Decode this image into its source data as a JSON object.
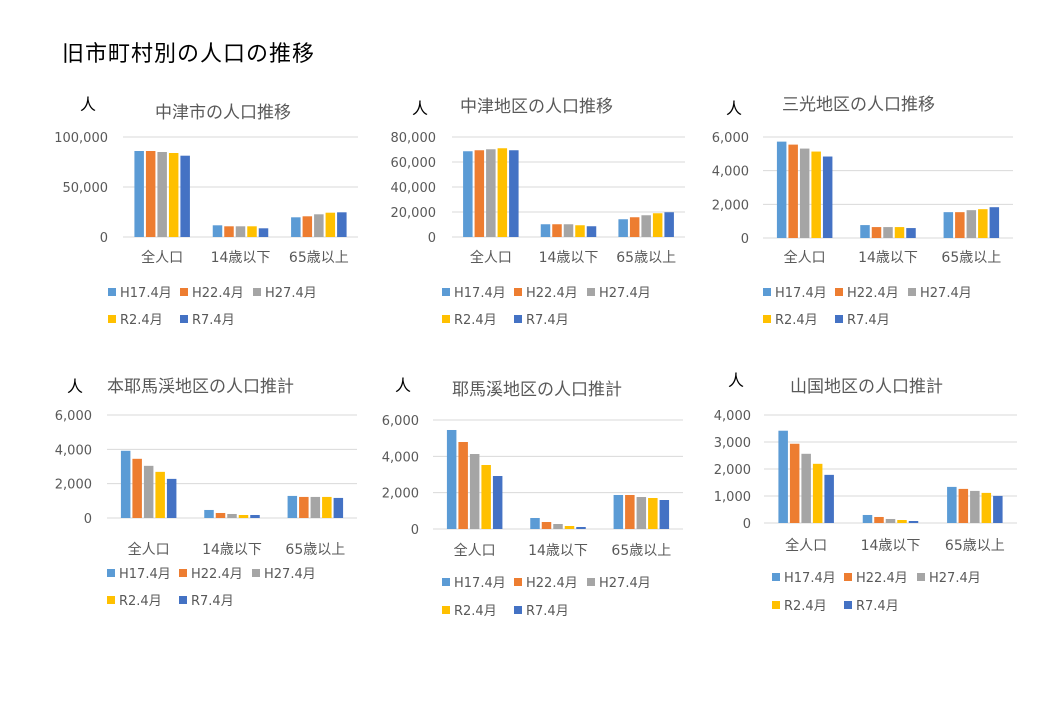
{
  "page": {
    "title": "旧市町村別の人口の推移"
  },
  "legend_colors": {
    "H17.4月": "#5B9BD5",
    "H22.4月": "#ED7D31",
    "H27.4月": "#A5A5A5",
    "R2.4月": "#FFC000",
    "R7.4月": "#4472C4"
  },
  "chart_data": [
    {
      "type": "bar",
      "title": "中津市の人口推移",
      "ylabel": "人",
      "xlabel": "",
      "categories": [
        "全人口",
        "14歳以下",
        "65歳以上"
      ],
      "ylim": [
        0,
        100000
      ],
      "yticks": [
        0,
        50000,
        100000
      ],
      "ytick_labels": [
        "0",
        "50,000",
        "100,000"
      ],
      "grid": true,
      "legend_position": "bottom",
      "series": [
        {
          "name": "H17.4月",
          "values": [
            86000,
            11700,
            19700
          ]
        },
        {
          "name": "H22.4月",
          "values": [
            86000,
            10700,
            20700
          ]
        },
        {
          "name": "H27.4月",
          "values": [
            85000,
            10700,
            22700
          ]
        },
        {
          "name": "R2.4月",
          "values": [
            84000,
            10700,
            24300
          ]
        },
        {
          "name": "R7.4月",
          "values": [
            81300,
            8700,
            24700
          ]
        }
      ]
    },
    {
      "type": "bar",
      "title": "中津地区の人口推移",
      "ylabel": "人",
      "xlabel": "",
      "categories": [
        "全人口",
        "14歳以下",
        "65歳以上"
      ],
      "ylim": [
        0,
        80000
      ],
      "yticks": [
        0,
        20000,
        40000,
        60000,
        80000
      ],
      "ytick_labels": [
        "0",
        "20,000",
        "40,000",
        "60,000",
        "80,000"
      ],
      "grid": true,
      "legend_position": "bottom",
      "series": [
        {
          "name": "H17.4月",
          "values": [
            68600,
            10200,
            14200
          ]
        },
        {
          "name": "H22.4月",
          "values": [
            69400,
            10200,
            15800
          ]
        },
        {
          "name": "H27.4月",
          "values": [
            70200,
            10200,
            17400
          ]
        },
        {
          "name": "R2.4月",
          "values": [
            71000,
            9400,
            19000
          ]
        },
        {
          "name": "R7.4月",
          "values": [
            69400,
            8600,
            19800
          ]
        }
      ]
    },
    {
      "type": "bar",
      "title": "三光地区の人口推移",
      "ylabel": "人",
      "xlabel": "",
      "categories": [
        "全人口",
        "14歳以下",
        "65歳以上"
      ],
      "ylim": [
        0,
        6000
      ],
      "yticks": [
        0,
        2000,
        4000,
        6000
      ],
      "ytick_labels": [
        "0",
        "2,000",
        "4,000",
        "6,000"
      ],
      "grid": true,
      "legend_position": "bottom",
      "series": [
        {
          "name": "H17.4月",
          "values": [
            5725,
            767,
            1535
          ]
        },
        {
          "name": "H22.4月",
          "values": [
            5548,
            649,
            1535
          ]
        },
        {
          "name": "H27.4月",
          "values": [
            5312,
            649,
            1653
          ]
        },
        {
          "name": "R2.4月",
          "values": [
            5135,
            649,
            1712
          ]
        },
        {
          "name": "R7.4月",
          "values": [
            4840,
            590,
            1830
          ]
        }
      ]
    },
    {
      "type": "bar",
      "title": "本耶馬渓地区の人口推計",
      "ylabel": "人",
      "xlabel": "",
      "categories": [
        "全人口",
        "14歳以下",
        "65歳以上"
      ],
      "ylim": [
        0,
        6000
      ],
      "yticks": [
        0,
        2000,
        4000,
        6000
      ],
      "ytick_labels": [
        "0",
        "2,000",
        "4,000",
        "6,000"
      ],
      "grid": true,
      "legend_position": "bottom",
      "series": [
        {
          "name": "H17.4月",
          "values": [
            3916,
            468,
            1286
          ]
        },
        {
          "name": "H22.4月",
          "values": [
            3448,
            292,
            1227
          ]
        },
        {
          "name": "H27.4月",
          "values": [
            3039,
            234,
            1227
          ]
        },
        {
          "name": "R2.4月",
          "values": [
            2688,
            175,
            1227
          ]
        },
        {
          "name": "R7.4月",
          "values": [
            2279,
            175,
            1169
          ]
        }
      ]
    },
    {
      "type": "bar",
      "title": "耶馬溪地区の人口推計",
      "ylabel": "人",
      "xlabel": "",
      "categories": [
        "全人口",
        "14歳以下",
        "65歳以上"
      ],
      "ylim": [
        0,
        6000
      ],
      "yticks": [
        0,
        2000,
        4000,
        6000
      ],
      "ytick_labels": [
        "0",
        "2,000",
        "4,000",
        "6,000"
      ],
      "grid": true,
      "legend_position": "bottom",
      "series": [
        {
          "name": "H17.4月",
          "values": [
            5450,
            606,
            1872
          ]
        },
        {
          "name": "H22.4月",
          "values": [
            4789,
            385,
            1872
          ]
        },
        {
          "name": "H27.4月",
          "values": [
            4128,
            275,
            1761
          ]
        },
        {
          "name": "R2.4月",
          "values": [
            3523,
            165,
            1706
          ]
        },
        {
          "name": "R7.4月",
          "values": [
            2917,
            110,
            1596
          ]
        }
      ]
    },
    {
      "type": "bar",
      "title": "山国地区の人口推計",
      "ylabel": "人",
      "xlabel": "",
      "categories": [
        "全人口",
        "14歳以下",
        "65歳以上"
      ],
      "ylim": [
        0,
        4000
      ],
      "yticks": [
        0,
        1000,
        2000,
        3000,
        4000
      ],
      "ytick_labels": [
        "0",
        "1,000",
        "2,000",
        "3,000",
        "4,000"
      ],
      "grid": true,
      "legend_position": "bottom",
      "series": [
        {
          "name": "H17.4月",
          "values": [
            3418,
            297,
            1337
          ]
        },
        {
          "name": "H22.4月",
          "values": [
            2935,
            223,
            1263
          ]
        },
        {
          "name": "H27.4月",
          "values": [
            2563,
            149,
            1189
          ]
        },
        {
          "name": "R2.4月",
          "values": [
            2192,
            111,
            1115
          ]
        },
        {
          "name": "R7.4月",
          "values": [
            1783,
            74,
            1003
          ]
        }
      ]
    }
  ]
}
